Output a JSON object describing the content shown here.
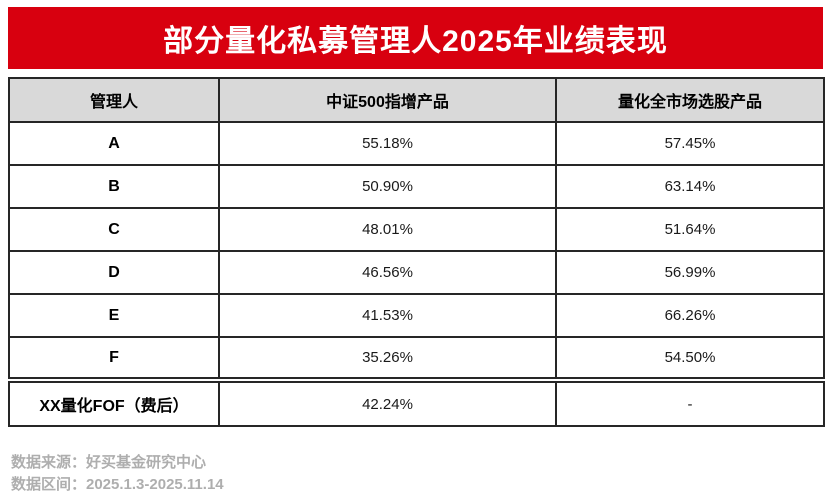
{
  "title": "部分量化私募管理人2025年业绩表现",
  "table": {
    "headers": [
      "管理人",
      "中证500指增产品",
      "量化全市场选股产品"
    ],
    "rows": [
      {
        "manager": "A",
        "csi500_enhanced": "55.18%",
        "all_market_stock": "57.45%"
      },
      {
        "manager": "B",
        "csi500_enhanced": "50.90%",
        "all_market_stock": "63.14%"
      },
      {
        "manager": "C",
        "csi500_enhanced": "48.01%",
        "all_market_stock": "51.64%"
      },
      {
        "manager": "D",
        "csi500_enhanced": "46.56%",
        "all_market_stock": "56.99%"
      },
      {
        "manager": "E",
        "csi500_enhanced": "41.53%",
        "all_market_stock": "66.26%"
      },
      {
        "manager": "F",
        "csi500_enhanced": "35.26%",
        "all_market_stock": "54.50%"
      },
      {
        "manager": "XX量化FOF（费后）",
        "csi500_enhanced": "42.24%",
        "all_market_stock": "-"
      }
    ]
  },
  "footer": {
    "source": "数据来源：好买基金研究中心",
    "period": "数据区间：2025.1.3-2025.11.14"
  },
  "colors": {
    "banner_red": "#d8000f",
    "header_gray": "#d9d9d9",
    "border_dark": "#262626",
    "footer_gray": "#aeaeae"
  },
  "chart_data": {
    "type": "table",
    "title": "部分量化私募管理人2025年业绩表现",
    "columns": [
      "管理人",
      "中证500指增产品",
      "量化全市场选股产品"
    ],
    "rows": [
      [
        "A",
        "55.18%",
        "57.45%"
      ],
      [
        "B",
        "50.90%",
        "63.14%"
      ],
      [
        "C",
        "48.01%",
        "51.64%"
      ],
      [
        "D",
        "46.56%",
        "56.99%"
      ],
      [
        "E",
        "41.53%",
        "66.26%"
      ],
      [
        "F",
        "35.26%",
        "54.50%"
      ],
      [
        "XX量化FOF（费后）",
        "42.24%",
        "-"
      ]
    ],
    "values_pct": {
      "csi500_enhanced": [
        55.18,
        50.9,
        48.01,
        46.56,
        41.53,
        35.26,
        42.24
      ],
      "all_market_stock": [
        57.45,
        63.14,
        51.64,
        56.99,
        66.26,
        54.5,
        null
      ]
    },
    "source": "数据来源：好买基金研究中心",
    "period": "数据区间：2025.1.3-2025.11.14"
  }
}
